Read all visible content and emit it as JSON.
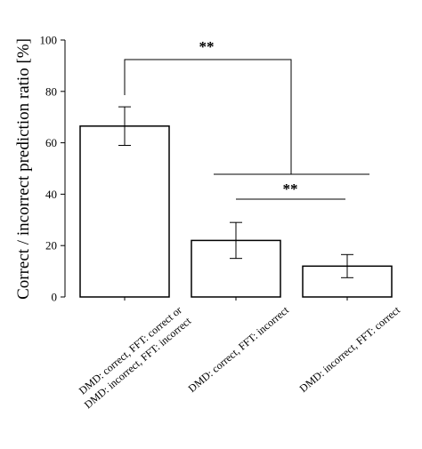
{
  "chart_data": {
    "type": "bar",
    "title": "",
    "xlabel": "",
    "ylabel": "Correct / incorrect prediction ratio [%]",
    "ylim": [
      0,
      100
    ],
    "yticks": [
      0,
      20,
      40,
      60,
      80,
      100
    ],
    "categories": [
      [
        "DMD: correct, FFT: correct or",
        "DMD: incorrect, FFT: incorrect"
      ],
      [
        "DMD: correct, FFT: incorrect"
      ],
      [
        "DMD: incorrect, FFT: correct"
      ]
    ],
    "values": [
      66.5,
      22,
      12
    ],
    "errors": [
      7.5,
      7,
      4.5
    ],
    "bar_fill": "#ffffff",
    "bar_stroke": "#000000",
    "grid": false,
    "annotations": [
      {
        "label": "**",
        "type": "bracket",
        "from": "bar1",
        "to": "bars2-3"
      },
      {
        "label": "**",
        "type": "bracket",
        "from": "bar2",
        "to": "bar3"
      }
    ]
  }
}
